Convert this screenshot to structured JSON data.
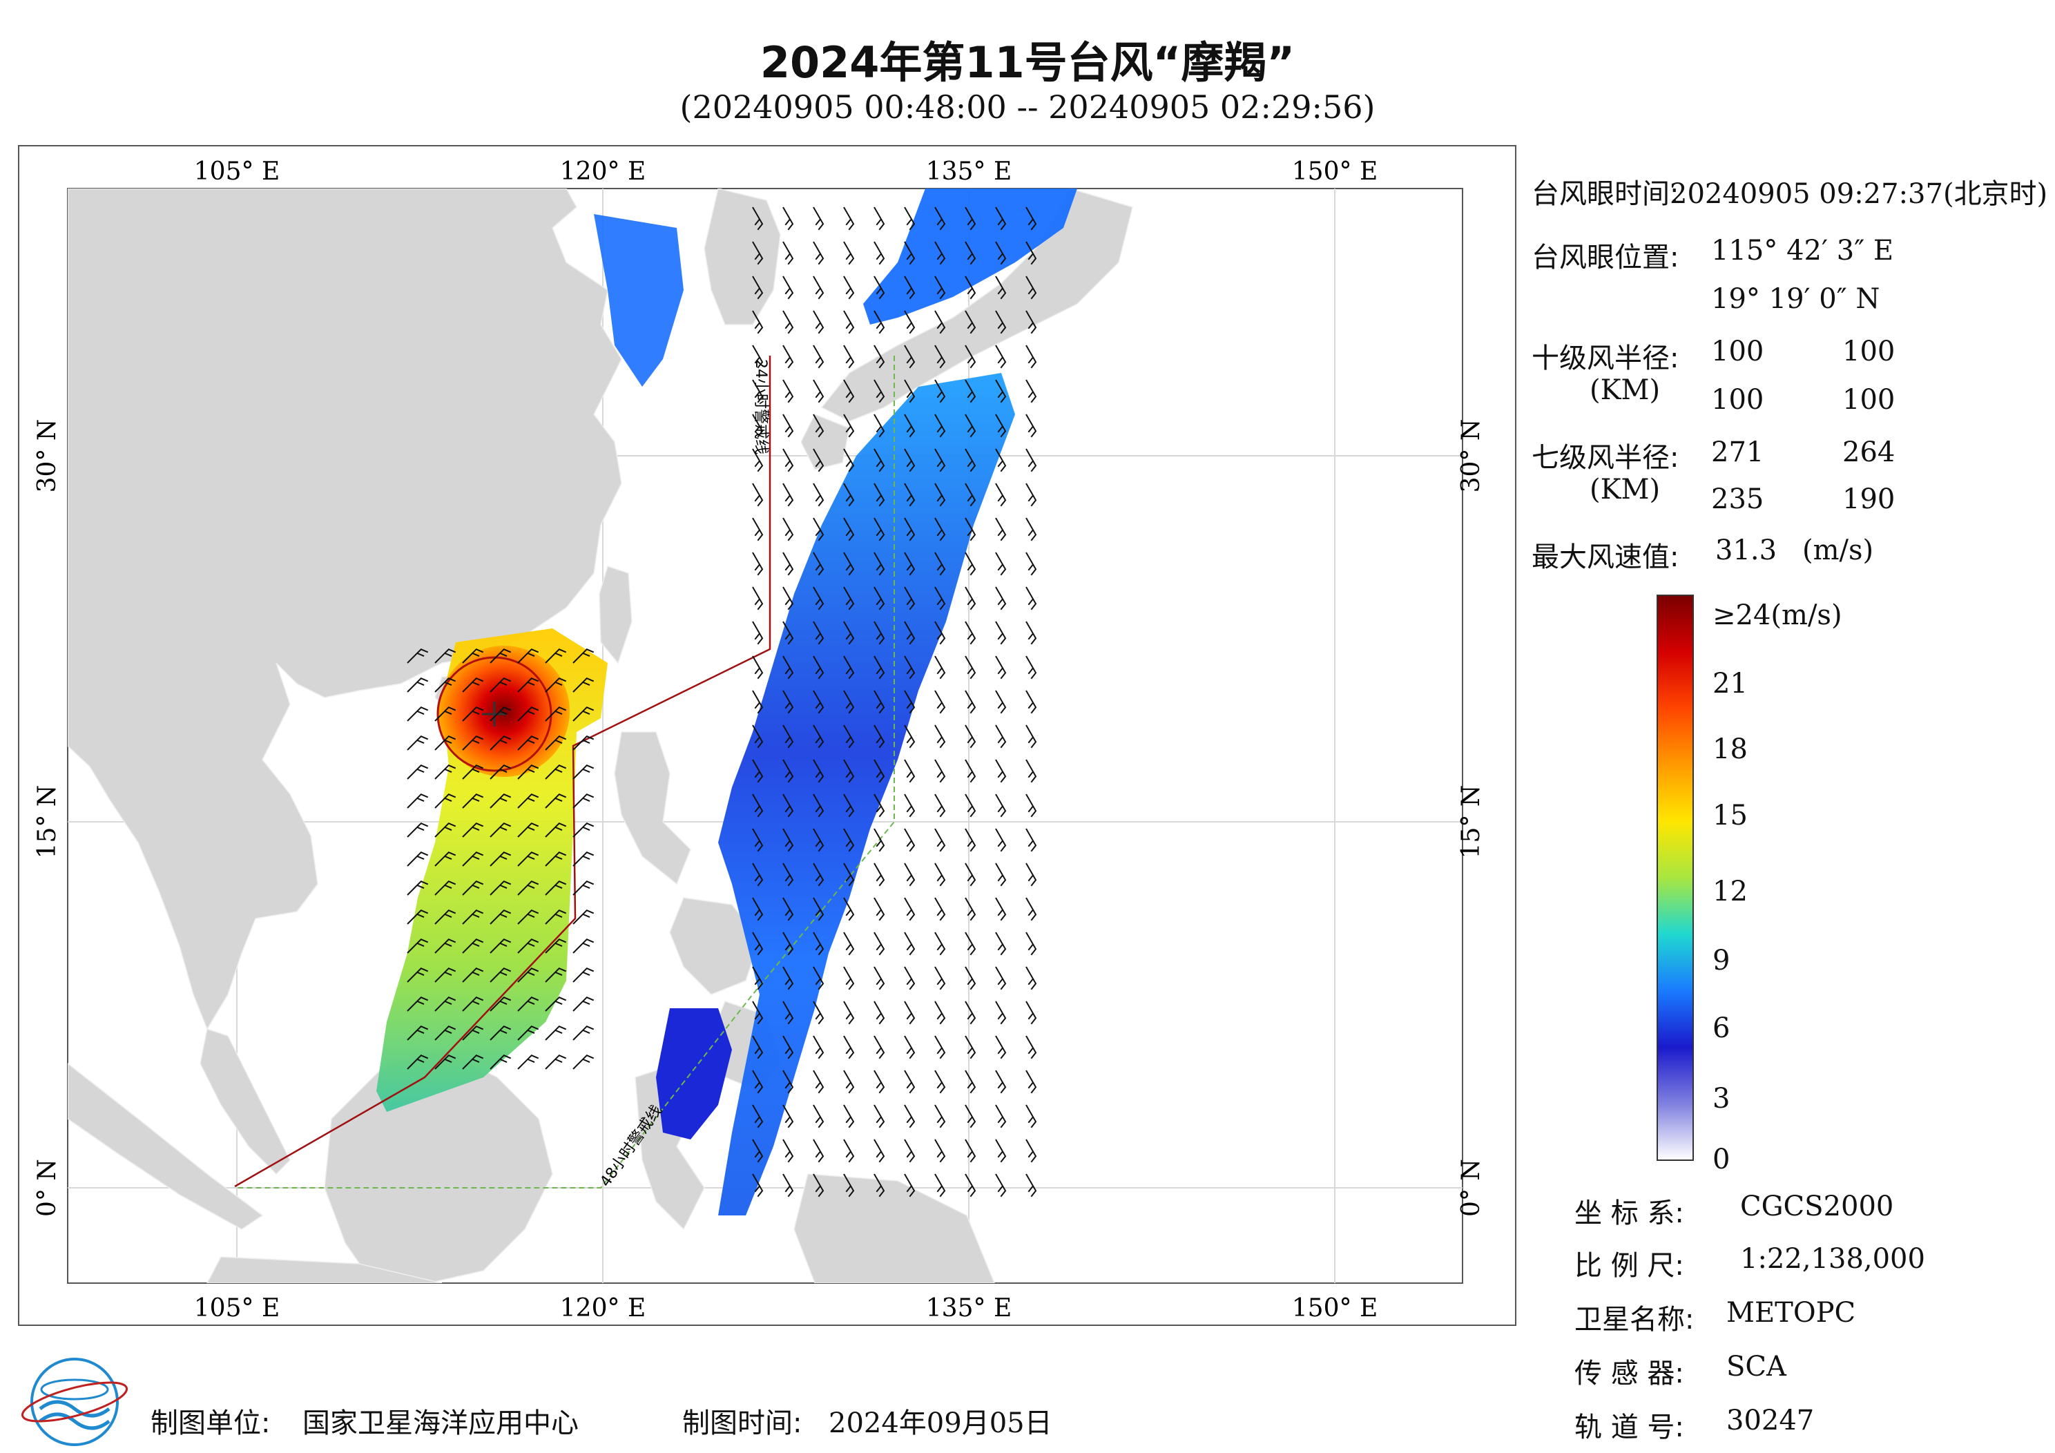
{
  "header": {
    "title": "2024年第11号台风“摩羯”",
    "subtitle": "(20240905 00:48:00 -- 20240905 02:29:56)"
  },
  "map": {
    "lon_ticks": [
      "105° E",
      "120° E",
      "135° E",
      "150° E"
    ],
    "lat_ticks": [
      "30° N",
      "15° N",
      "0° N"
    ],
    "line_24h": "24小时警戒线",
    "line_48h": "48小时警戒线"
  },
  "info": {
    "eye_time_label": "台风眼时间:",
    "eye_time_value": "20240905 09:27:37(北京时)",
    "eye_pos_label": "台风眼位置:",
    "eye_lon": "115° 42′ 3″ E",
    "eye_lat": "19° 19′ 0″ N",
    "r10_label": "十级风半径:",
    "r10_unit": "(KM)",
    "r10_values": [
      "100",
      "100",
      "100",
      "100"
    ],
    "r7_label": "七级风半径:",
    "r7_unit": "(KM)",
    "r7_values": [
      "271",
      "264",
      "235",
      "190"
    ],
    "max_wind_label": "最大风速值:",
    "max_wind_value": "31.3",
    "max_wind_unit": "(m/s)"
  },
  "colorbar": {
    "labels": [
      "≥24(m/s)",
      "21",
      "18",
      "15",
      "12",
      "9",
      "6",
      "3",
      "0"
    ],
    "colors": [
      "#7a0000",
      "#d40000",
      "#ff4500",
      "#ff9a00",
      "#ffe600",
      "#a8e640",
      "#20d8d0",
      "#1a7bff",
      "#1a1acc",
      "#8080e0",
      "#ffffff"
    ]
  },
  "meta": {
    "coord_label": "坐 标 系:",
    "coord_value": "CGCS2000",
    "scale_label": "比 例 尺:",
    "scale_value": "1:22,138,000",
    "satellite_label": "卫星名称:",
    "satellite_value": "METOPC",
    "sensor_label": "传 感 器:",
    "sensor_value": "SCA",
    "orbit_label": "轨 道 号:",
    "orbit_value": "30247"
  },
  "footer": {
    "producer_label": "制图单位:",
    "producer_value": "国家卫星海洋应用中心",
    "date_label": "制图时间:",
    "date_value": "2024年09月05日"
  }
}
